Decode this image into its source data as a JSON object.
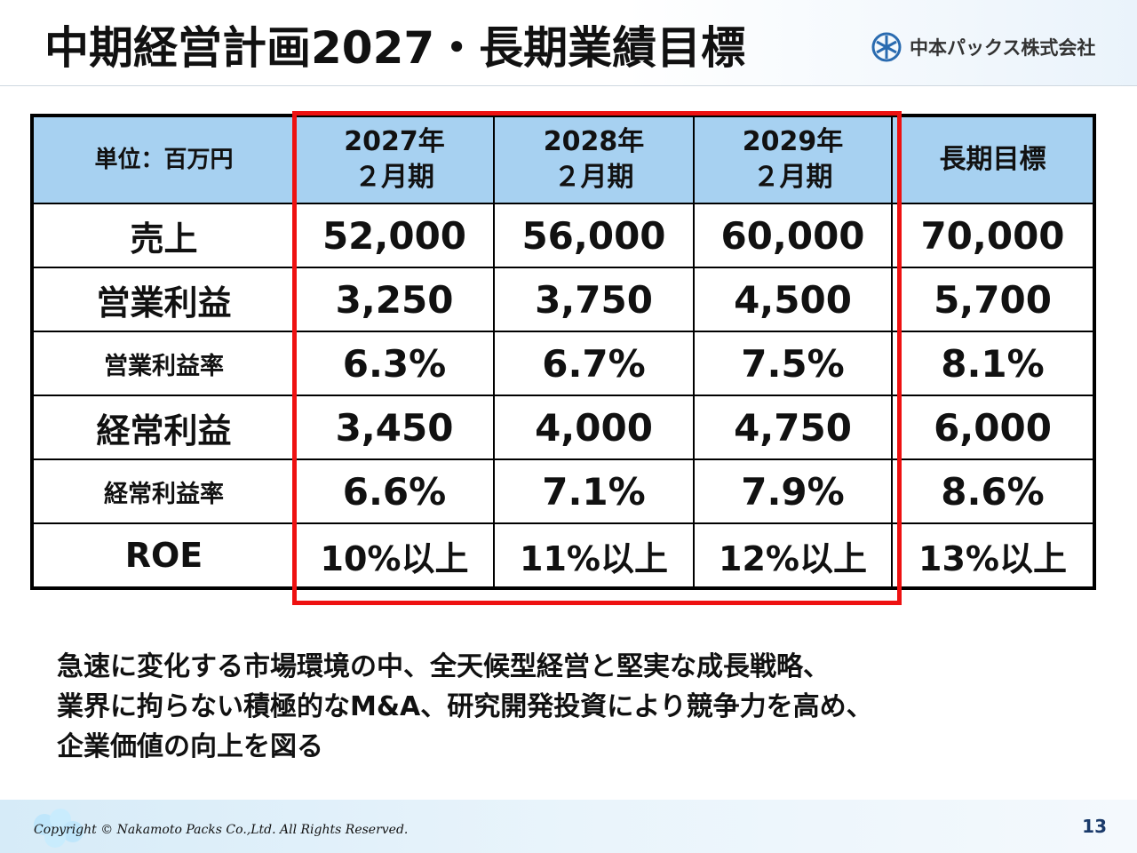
{
  "slide": {
    "title": "中期経営計画2027・長期業績目標",
    "company": "中本パックス株式会社",
    "page_number": "13",
    "copyright": "Copyright © Nakamoto Packs Co.,Ltd. All Rights Reserved."
  },
  "table": {
    "unit_label": "単位：百万円",
    "columns": [
      {
        "line1": "2027年",
        "line2": "２月期"
      },
      {
        "line1": "2028年",
        "line2": "２月期"
      },
      {
        "line1": "2029年",
        "line2": "２月期"
      },
      {
        "line1": "長期目標",
        "line2": ""
      }
    ],
    "rows": [
      {
        "label": "売上",
        "size": "big",
        "values": [
          "52,000",
          "56,000",
          "60,000",
          "70,000"
        ]
      },
      {
        "label": "営業利益",
        "size": "big",
        "values": [
          "3,250",
          "3,750",
          "4,500",
          "5,700"
        ]
      },
      {
        "label": "営業利益率",
        "size": "small",
        "values": [
          "6.3%",
          "6.7%",
          "7.5%",
          "8.1%"
        ]
      },
      {
        "label": "経常利益",
        "size": "big",
        "values": [
          "3,450",
          "4,000",
          "4,750",
          "6,000"
        ]
      },
      {
        "label": "経常利益率",
        "size": "small",
        "values": [
          "6.6%",
          "7.1%",
          "7.9%",
          "8.6%"
        ]
      },
      {
        "label": "ROE",
        "size": "big",
        "values": [
          "10%以上",
          "11%以上",
          "12%以上",
          "13%以上"
        ]
      }
    ]
  },
  "message": {
    "lines": [
      "急速に変化する市場環境の中、全天候型経営と堅実な成長戦略、",
      "業界に拘らない積極的なM&A、研究開発投資により競争力を高め、",
      "企業価値の向上を図る"
    ]
  },
  "colors": {
    "header_cell": "#a7d1f1",
    "highlight_border": "#ee1111",
    "logo_blue": "#2a6bb0"
  }
}
